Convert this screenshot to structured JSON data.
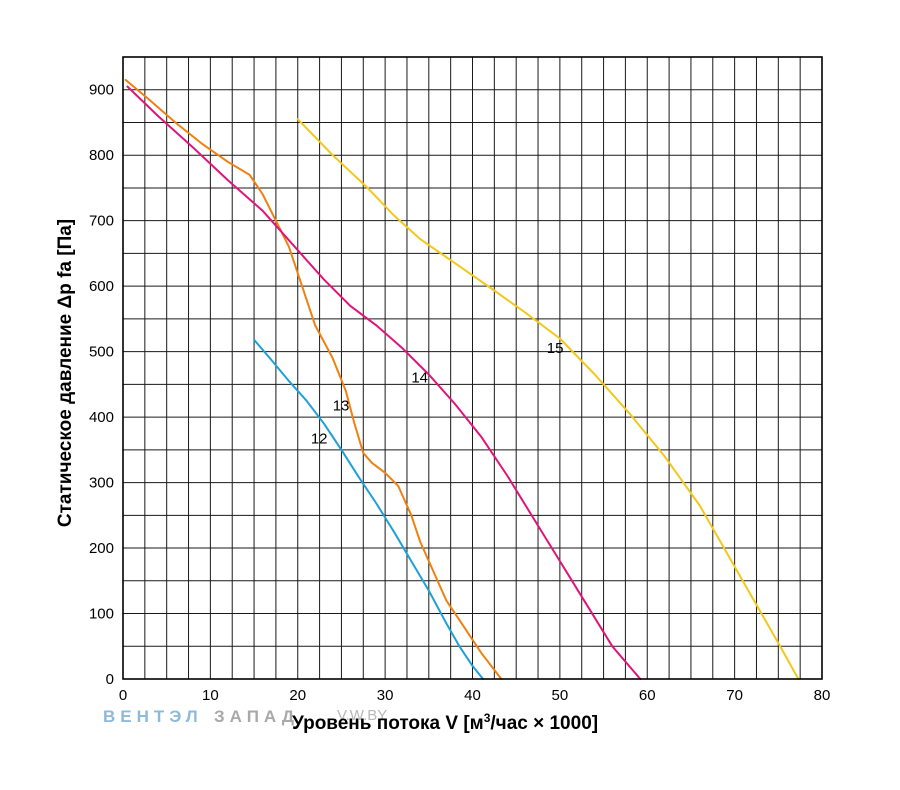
{
  "chart_data": {
    "type": "line",
    "xlabel_main": "Уровень потока V [м",
    "xlabel_sup": "3",
    "xlabel_tail": "/час × 1000]",
    "ylabel": "Статическое давление Δp fa [Па]",
    "xlim": [
      0,
      80
    ],
    "ylim": [
      0,
      950
    ],
    "x_ticks": [
      0,
      10,
      20,
      30,
      40,
      50,
      60,
      70,
      80
    ],
    "y_ticks": [
      0,
      100,
      200,
      300,
      400,
      500,
      600,
      700,
      800,
      900
    ],
    "x_tick_labels": [
      "0",
      "10",
      "20",
      "30",
      "40",
      "50",
      "60",
      "70",
      "80"
    ],
    "y_tick_labels": [
      "0",
      "100",
      "200",
      "300",
      "400",
      "500",
      "600",
      "700",
      "800",
      "900"
    ],
    "grid": true,
    "grid_step_x": 2.5,
    "grid_step_y": 50,
    "series": [
      {
        "name": "12",
        "color": "#1ea0d8",
        "x": [
          15,
          17,
          19,
          21,
          23,
          25,
          27,
          29,
          31,
          33,
          35,
          37,
          38.5,
          40,
          41.2
        ],
        "y": [
          518,
          487,
          455,
          425,
          390,
          350,
          308,
          268,
          225,
          180,
          135,
          85,
          50,
          20,
          0
        ]
      },
      {
        "name": "13",
        "color": "#f08010",
        "x": [
          0.3,
          3,
          6,
          9,
          12,
          14.5,
          16,
          17.5,
          19,
          20.5,
          22,
          24,
          25.5,
          26.5,
          27.5,
          28.5,
          30,
          31.5,
          33,
          34,
          35.5,
          37,
          39,
          41,
          43.3
        ],
        "y": [
          915,
          885,
          850,
          818,
          790,
          770,
          740,
          700,
          660,
          600,
          540,
          490,
          440,
          390,
          345,
          330,
          315,
          295,
          250,
          210,
          165,
          120,
          80,
          40,
          0
        ]
      },
      {
        "name": "14",
        "color": "#e0147a",
        "x": [
          0.5,
          4,
          8,
          12,
          16,
          19,
          21,
          23,
          26,
          29,
          32,
          35,
          38,
          41,
          44,
          47,
          50,
          53,
          56,
          59.2
        ],
        "y": [
          905,
          860,
          812,
          762,
          715,
          670,
          640,
          610,
          570,
          540,
          505,
          465,
          420,
          370,
          310,
          245,
          180,
          115,
          50,
          0
        ]
      },
      {
        "name": "15",
        "color": "#f2c81a",
        "x": [
          20,
          24,
          28,
          31,
          34,
          38,
          42,
          46,
          50,
          54,
          58,
          62,
          66,
          69,
          72,
          75,
          77.3
        ],
        "y": [
          855,
          800,
          750,
          708,
          672,
          635,
          598,
          560,
          520,
          465,
          405,
          340,
          265,
          195,
          125,
          55,
          0
        ]
      }
    ],
    "curve_labels": [
      {
        "text": "12",
        "x": 21.5,
        "y": 360
      },
      {
        "text": "13",
        "x": 24.0,
        "y": 410
      },
      {
        "text": "14",
        "x": 33.0,
        "y": 453
      },
      {
        "text": "15",
        "x": 48.5,
        "y": 498
      }
    ]
  },
  "watermark": {
    "part1": "ВЕНТЭЛ",
    "part2": "ЗАПАД",
    "part3": "V.W.BY"
  }
}
